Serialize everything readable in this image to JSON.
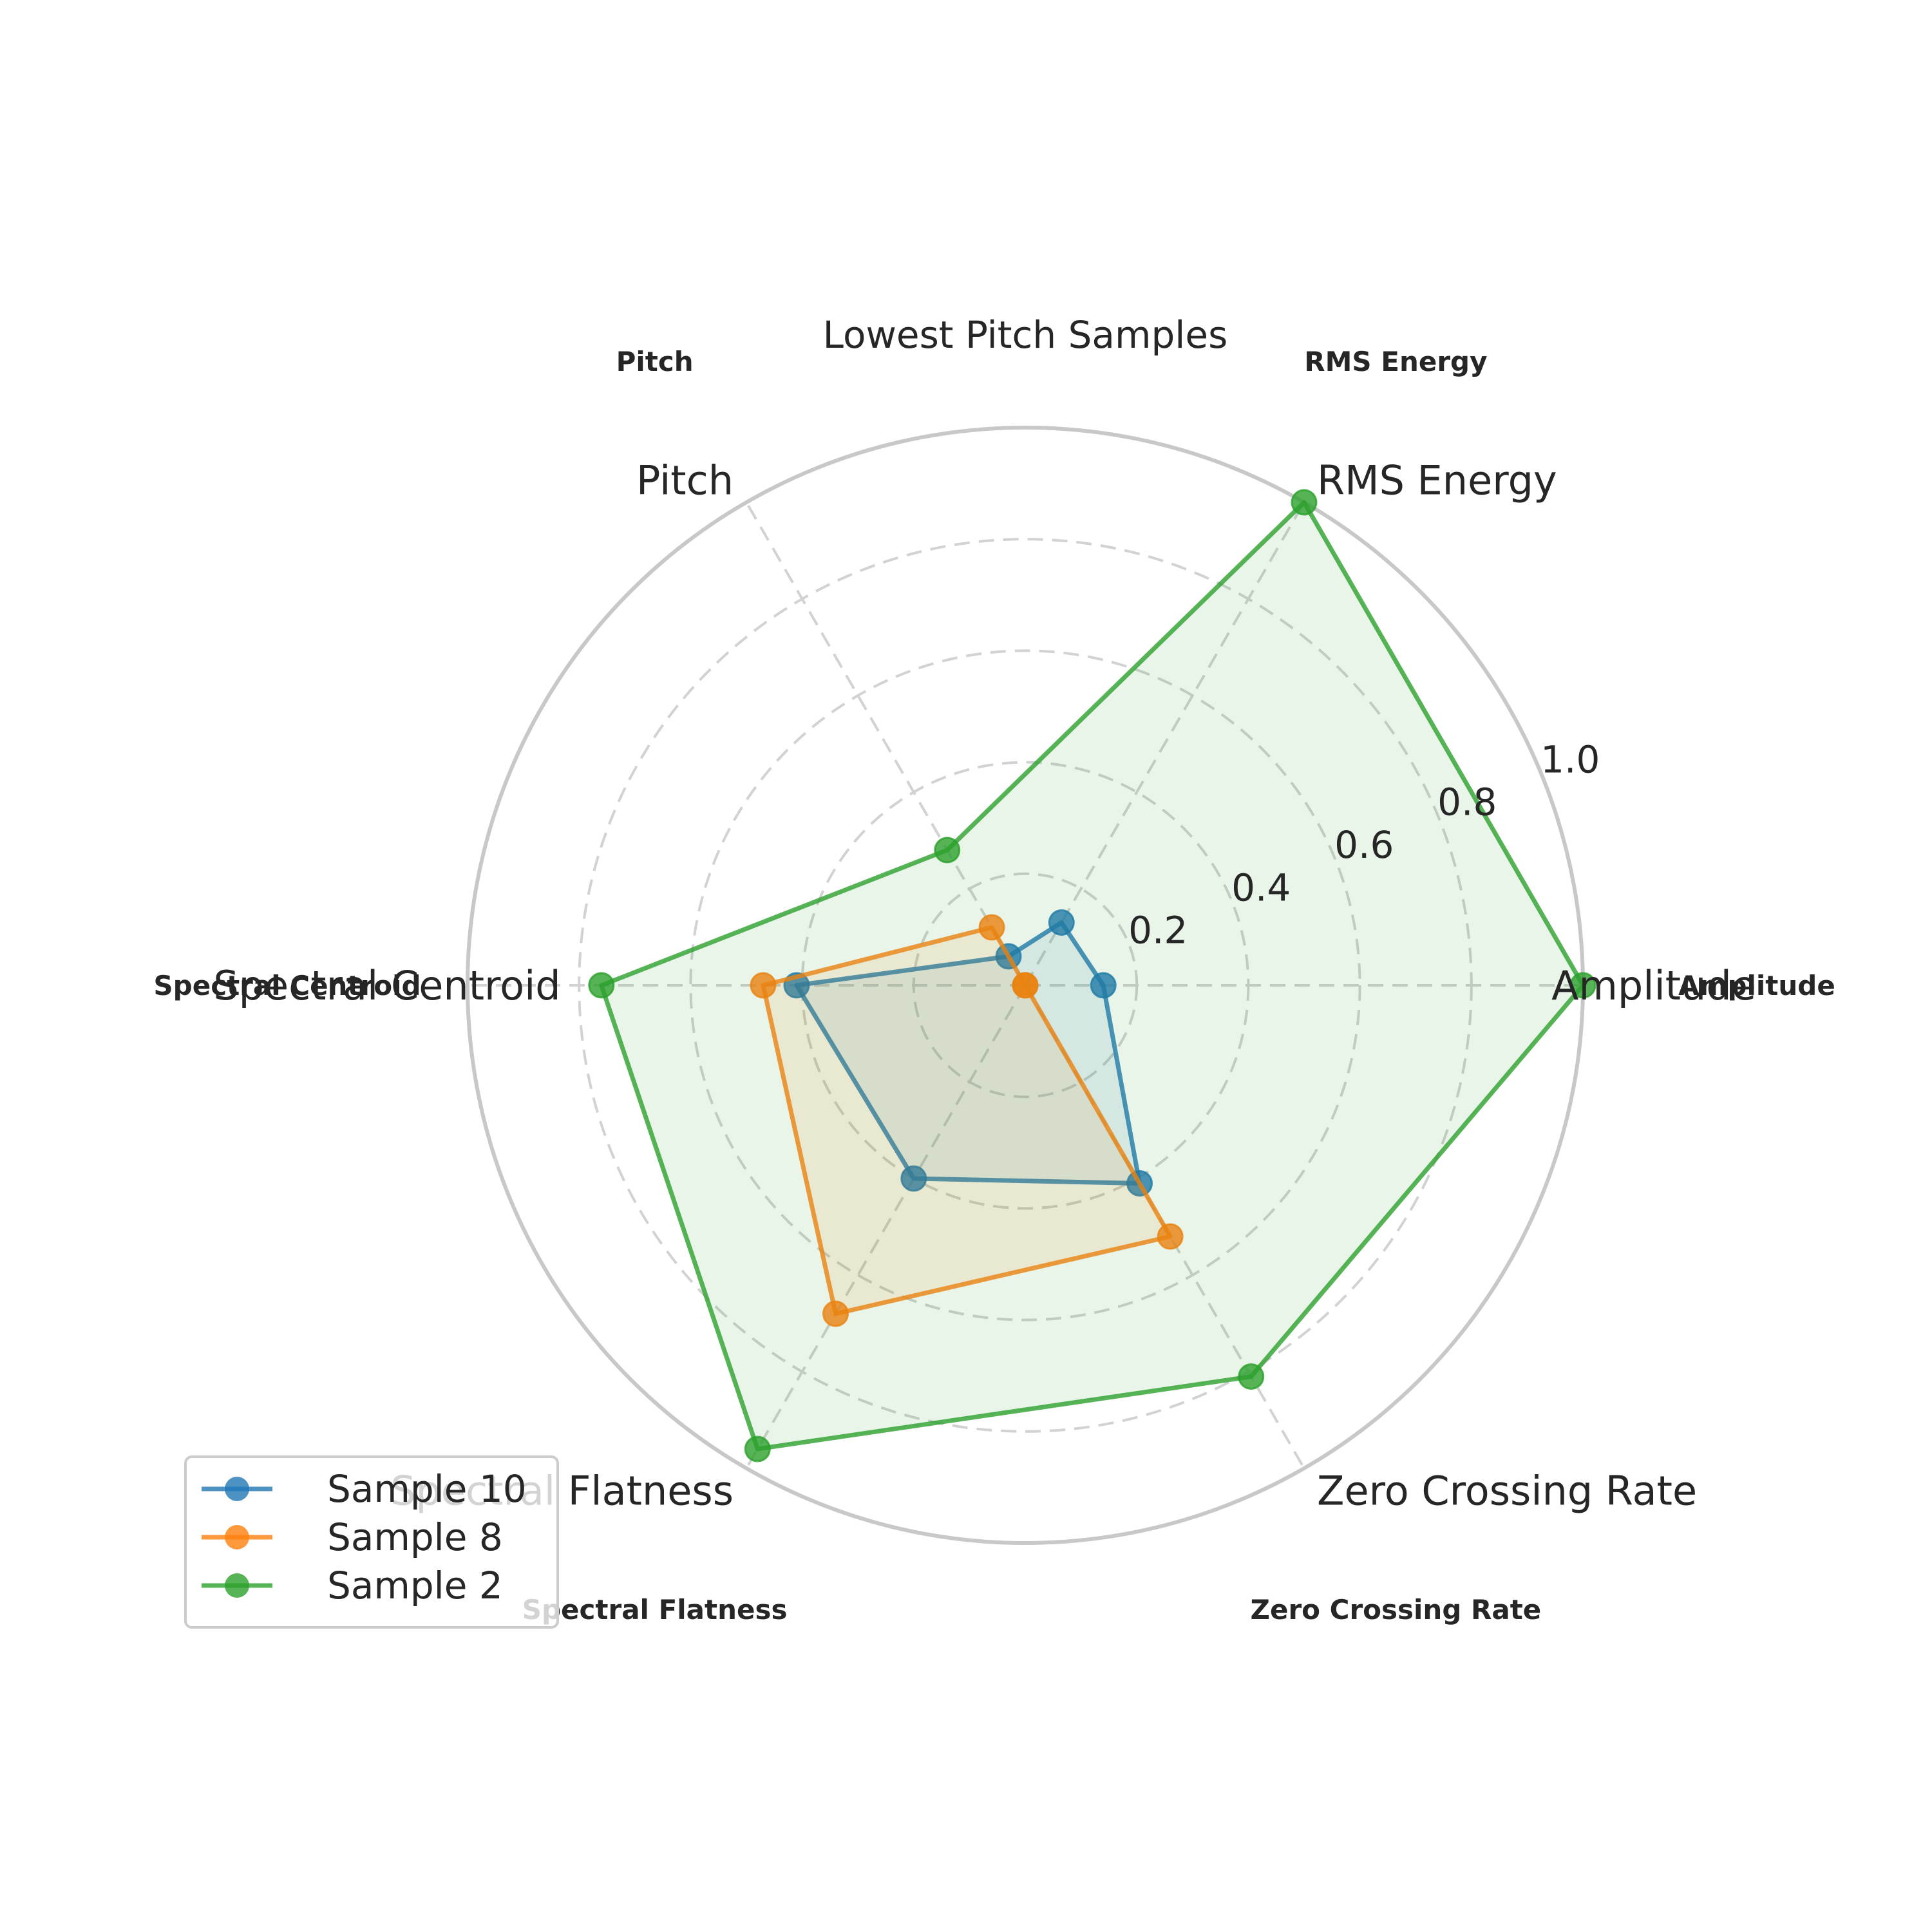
{
  "chart_data": {
    "type": "radar",
    "title": "Lowest Pitch Samples",
    "axes": [
      "Amplitude",
      "RMS Energy",
      "Pitch",
      "Spectral Centroid",
      "Spectral Flatness",
      "Zero Crossing Rate"
    ],
    "r_ticks": [
      "0.2",
      "0.4",
      "0.6",
      "0.8",
      "1.0"
    ],
    "r_tick_values": [
      0.2,
      0.4,
      0.6,
      0.8,
      1.0
    ],
    "rlim": [
      0,
      1.0
    ],
    "grid": true,
    "legend_position": "lower-left",
    "series": [
      {
        "name": "Sample 10",
        "color": "#1f77b4",
        "values": [
          0.14,
          0.13,
          0.06,
          0.41,
          0.4,
          0.41
        ]
      },
      {
        "name": "Sample 8",
        "color": "#ff7f0e",
        "values": [
          0.0,
          0.0,
          0.12,
          0.47,
          0.68,
          0.52
        ]
      },
      {
        "name": "Sample 2",
        "color": "#2ca02c",
        "values": [
          1.0,
          1.0,
          0.28,
          0.76,
          0.96,
          0.81
        ]
      }
    ]
  }
}
